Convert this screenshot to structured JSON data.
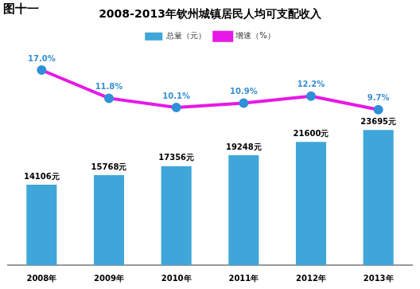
{
  "chart_data": {
    "type": "bar",
    "title": "2008-2013年钦州城镇居民人均可支配收入",
    "annotations": [
      "图十一"
    ],
    "categories": [
      "2008年",
      "2009年",
      "2010年",
      "2011年",
      "2012年",
      "2013年"
    ],
    "series": [
      {
        "name": "总量（元）",
        "type": "bar",
        "color": "#3fa6d9",
        "values": [
          14106,
          15768,
          17356,
          19248,
          21600,
          23695
        ],
        "value_labels": [
          "14106元",
          "15768元",
          "17356元",
          "19248元",
          "21600元",
          "23695元"
        ]
      },
      {
        "name": "增速（%）",
        "type": "line",
        "axis": "y2",
        "color": "#e619e6",
        "marker": "circle",
        "values": [
          17.0,
          11.8,
          10.1,
          10.9,
          12.2,
          9.7
        ],
        "value_labels": [
          "17.0%",
          "11.8%",
          "10.1%",
          "10.9%",
          "12.2%",
          "9.7%"
        ]
      }
    ],
    "ylim": [
      0,
      38000
    ],
    "y2lim": [
      -19,
      21
    ],
    "data_labels": true,
    "tick_labels": "x",
    "grid": false,
    "legend": "top"
  }
}
